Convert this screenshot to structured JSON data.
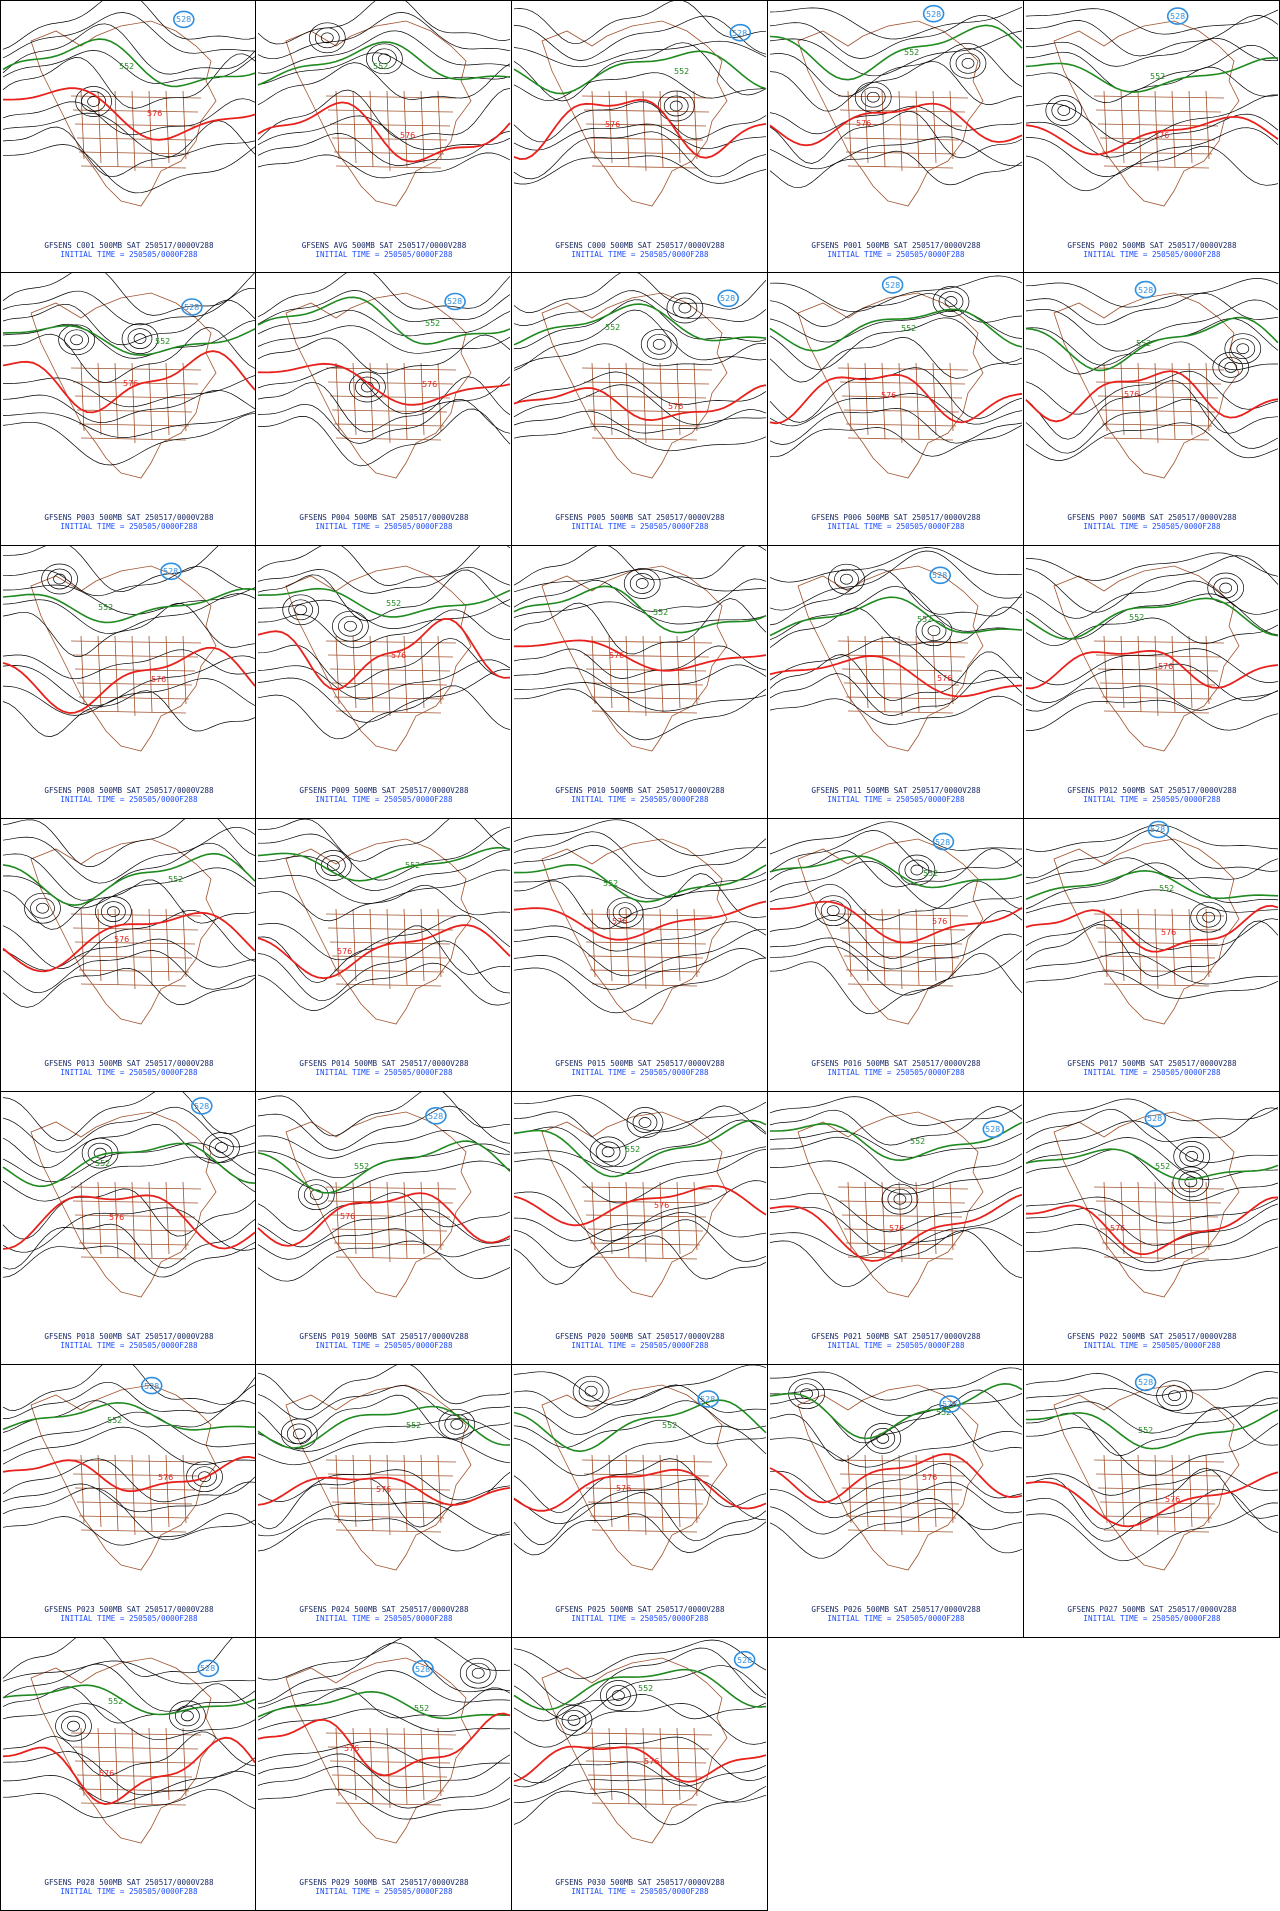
{
  "figure": {
    "panels": [
      {
        "member": "C001",
        "title": "GFSENS C001 500MB SAT 250517/0000V288",
        "init": "INITIAL TIME = 250505/0000F288"
      },
      {
        "member": "AVG",
        "title": "GFSENS AVG 500MB SAT 250517/0000V288",
        "init": "INITIAL TIME = 250505/0000F288"
      },
      {
        "member": "C000",
        "title": "GFSENS C000 500MB SAT 250517/0000V288",
        "init": "INITIAL TIME = 250505/0000F288"
      },
      {
        "member": "P001",
        "title": "GFSENS P001 500MB SAT 250517/0000V288",
        "init": "INITIAL TIME = 250505/0000F288"
      },
      {
        "member": "P002",
        "title": "GFSENS P002 500MB SAT 250517/0000V288",
        "init": "INITIAL TIME = 250505/0000F288"
      },
      {
        "member": "P003",
        "title": "GFSENS P003 500MB SAT 250517/0000V288",
        "init": "INITIAL TIME = 250505/0000F288"
      },
      {
        "member": "P004",
        "title": "GFSENS P004 500MB SAT 250517/0000V288",
        "init": "INITIAL TIME = 250505/0000F288"
      },
      {
        "member": "P005",
        "title": "GFSENS P005 500MB SAT 250517/0000V288",
        "init": "INITIAL TIME = 250505/0000F288"
      },
      {
        "member": "P006",
        "title": "GFSENS P006 500MB SAT 250517/0000V288",
        "init": "INITIAL TIME = 250505/0000F288"
      },
      {
        "member": "P007",
        "title": "GFSENS P007 500MB SAT 250517/0000V288",
        "init": "INITIAL TIME = 250505/0000F288"
      },
      {
        "member": "P008",
        "title": "GFSENS P008 500MB SAT 250517/0000V288",
        "init": "INITIAL TIME = 250505/0000F288"
      },
      {
        "member": "P009",
        "title": "GFSENS P009 500MB SAT 250517/0000V288",
        "init": "INITIAL TIME = 250505/0000F288"
      },
      {
        "member": "P010",
        "title": "GFSENS P010 500MB SAT 250517/0000V288",
        "init": "INITIAL TIME = 250505/0000F288"
      },
      {
        "member": "P011",
        "title": "GFSENS P011 500MB SAT 250517/0000V288",
        "init": "INITIAL TIME = 250505/0000F288"
      },
      {
        "member": "P012",
        "title": "GFSENS P012 500MB SAT 250517/0000V288",
        "init": "INITIAL TIME = 250505/0000F288"
      },
      {
        "member": "P013",
        "title": "GFSENS P013 500MB SAT 250517/0000V288",
        "init": "INITIAL TIME = 250505/0000F288"
      },
      {
        "member": "P014",
        "title": "GFSENS P014 500MB SAT 250517/0000V288",
        "init": "INITIAL TIME = 250505/0000F288"
      },
      {
        "member": "P015",
        "title": "GFSENS P015 500MB SAT 250517/0000V288",
        "init": "INITIAL TIME = 250505/0000F288"
      },
      {
        "member": "P016",
        "title": "GFSENS P016 500MB SAT 250517/0000V288",
        "init": "INITIAL TIME = 250505/0000F288"
      },
      {
        "member": "P017",
        "title": "GFSENS P017 500MB SAT 250517/0000V288",
        "init": "INITIAL TIME = 250505/0000F288"
      },
      {
        "member": "P018",
        "title": "GFSENS P018 500MB SAT 250517/0000V288",
        "init": "INITIAL TIME = 250505/0000F288"
      },
      {
        "member": "P019",
        "title": "GFSENS P019 500MB SAT 250517/0000V288",
        "init": "INITIAL TIME = 250505/0000F288"
      },
      {
        "member": "P020",
        "title": "GFSENS P020 500MB SAT 250517/0000V288",
        "init": "INITIAL TIME = 250505/0000F288"
      },
      {
        "member": "P021",
        "title": "GFSENS P021 500MB SAT 250517/0000V288",
        "init": "INITIAL TIME = 250505/0000F288"
      },
      {
        "member": "P022",
        "title": "GFSENS P022 500MB SAT 250517/0000V288",
        "init": "INITIAL TIME = 250505/0000F288"
      },
      {
        "member": "P023",
        "title": "GFSENS P023 500MB SAT 250517/0000V288",
        "init": "INITIAL TIME = 250505/0000F288"
      },
      {
        "member": "P024",
        "title": "GFSENS P024 500MB SAT 250517/0000V288",
        "init": "INITIAL TIME = 250505/0000F288"
      },
      {
        "member": "P025",
        "title": "GFSENS P025 500MB SAT 250517/0000V288",
        "init": "INITIAL TIME = 250505/0000F288"
      },
      {
        "member": "P026",
        "title": "GFSENS P026 500MB SAT 250517/0000V288",
        "init": "INITIAL TIME = 250505/0000F288"
      },
      {
        "member": "P027",
        "title": "GFSENS P027 500MB SAT 250517/0000V288",
        "init": "INITIAL TIME = 250505/0000F288"
      },
      {
        "member": "P028",
        "title": "GFSENS P028 500MB SAT 250517/0000V288",
        "init": "INITIAL TIME = 250505/0000F288"
      },
      {
        "member": "P029",
        "title": "GFSENS P029 500MB SAT 250517/0000V288",
        "init": "INITIAL TIME = 250505/0000F288"
      },
      {
        "member": "P030",
        "title": "GFSENS P030 500MB SAT 250517/0000V288",
        "init": "INITIAL TIME = 250505/0000F288"
      }
    ],
    "contour_labels": {
      "ridge": "576",
      "trough": "552",
      "low": "528"
    },
    "colors": {
      "contour_576": "#e8211c",
      "contour_552": "#1f8a1f",
      "contour_528": "#2f8fe0",
      "contour_other": "#000000",
      "map_boundaries": "#a0522d",
      "title_text": "#1a2a66",
      "init_text": "#1a4cff"
    }
  }
}
